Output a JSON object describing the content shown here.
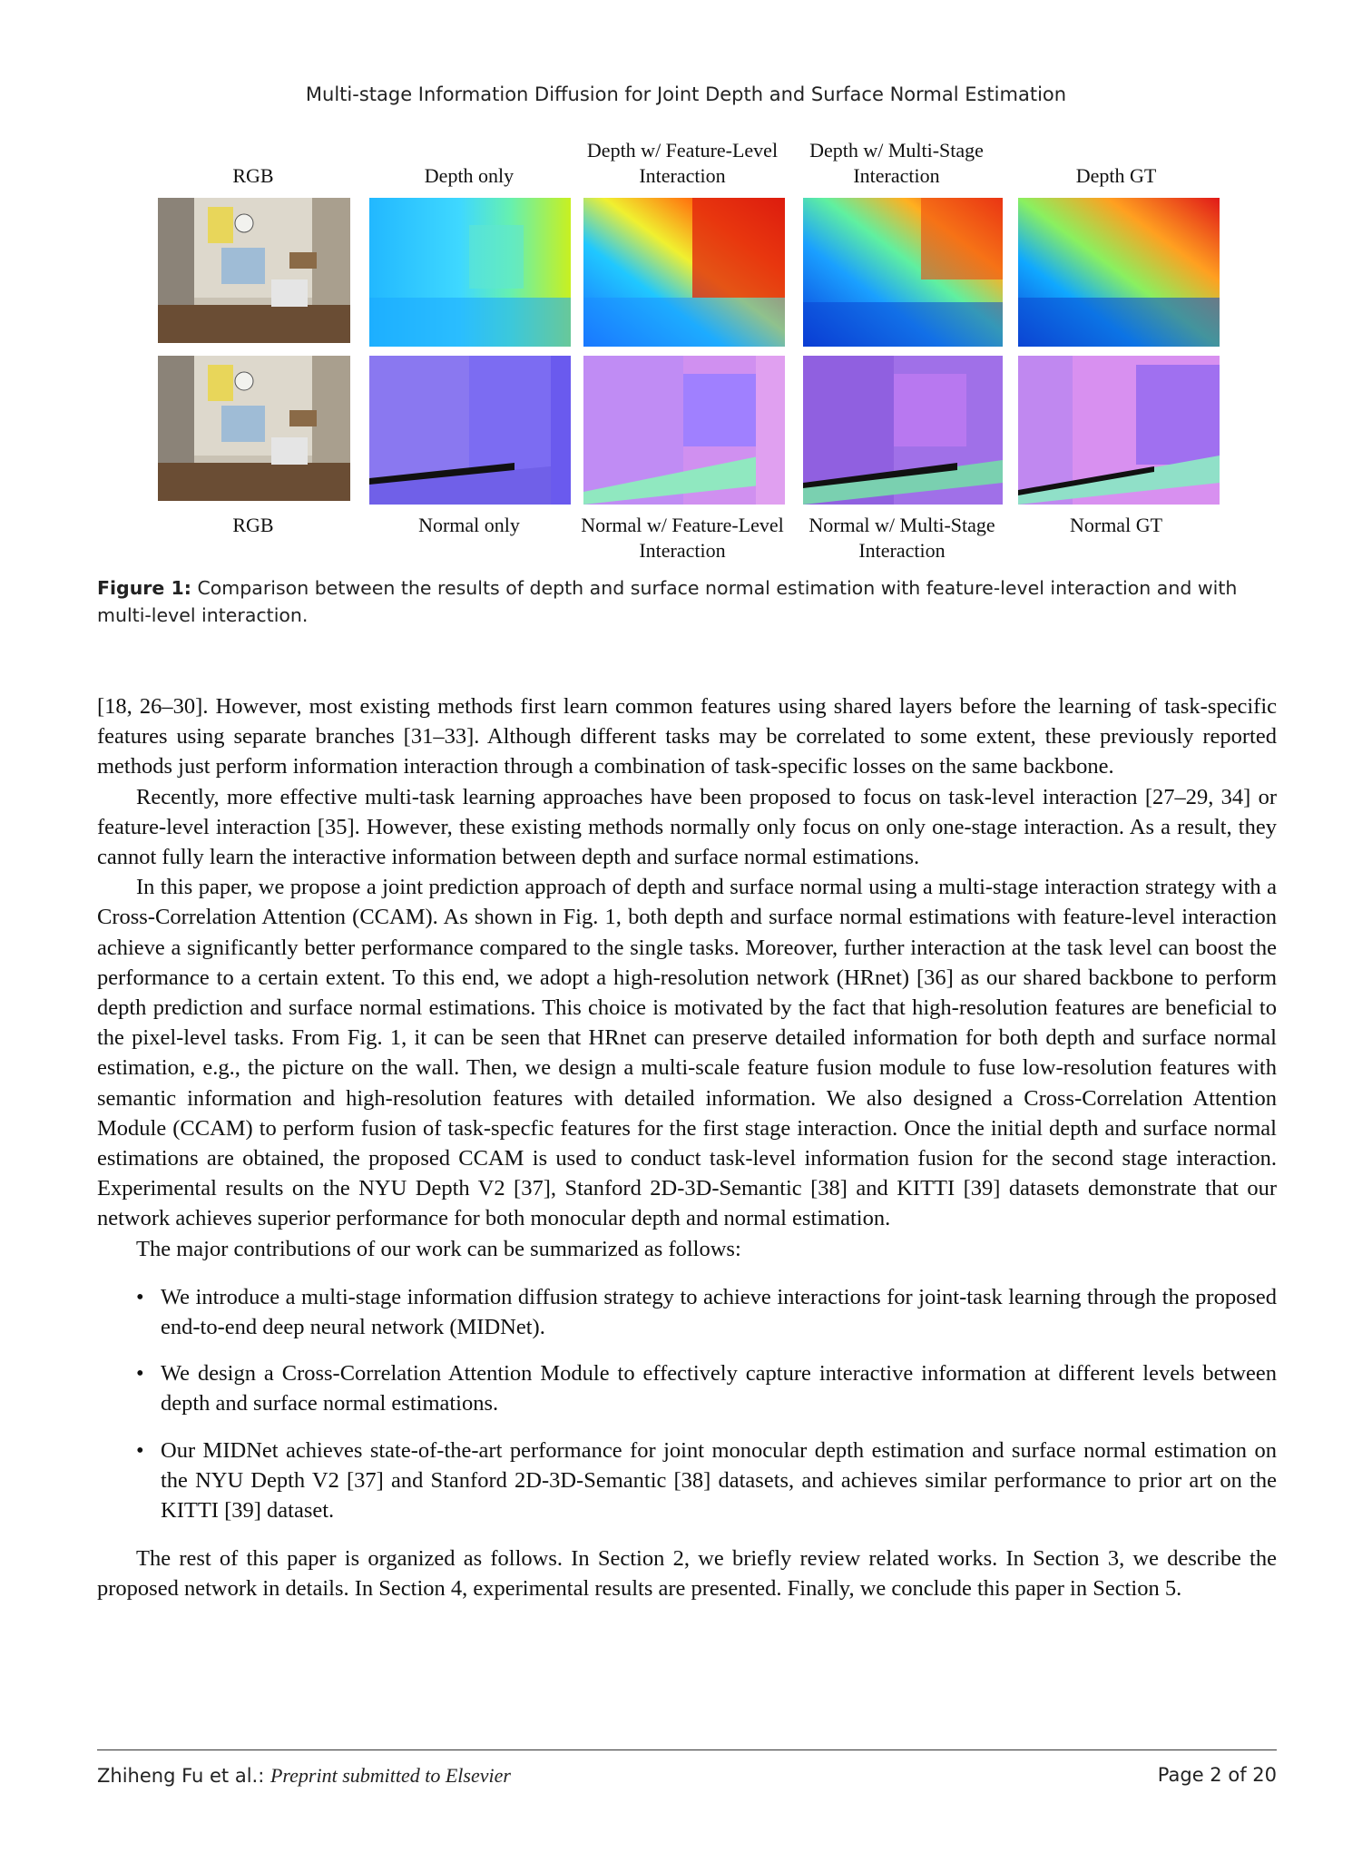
{
  "header": {
    "running_title": "Multi-stage Information Diffusion for Joint Depth and Surface Normal Estimation"
  },
  "figure": {
    "top_labels": [
      "RGB",
      "Depth only",
      "Depth w/ Feature-Level Interaction",
      "Depth w/ Multi-Stage Interaction",
      "Depth GT"
    ],
    "bottom_labels": [
      "RGB",
      "Normal only",
      "Normal  w/ Feature-Level Interaction",
      "Normal w/ Multi-Stage Interaction",
      "Normal GT"
    ],
    "caption_label": "Figure 1:",
    "caption_text": "Comparison between the results of depth and surface normal estimation with feature-level interaction and with multi-level interaction."
  },
  "body": {
    "p1": "[18, 26–30]. However, most existing methods first learn common features using shared layers before the learning of task-specific features using separate branches [31–33]. Although different tasks may be correlated to some extent, these previously reported methods just perform information interaction through a combination of task-specific losses on the same backbone.",
    "p2": "Recently, more effective multi-task learning approaches have been proposed to focus on task-level interaction [27–29, 34] or feature-level interaction [35]. However, these existing methods normally only focus on only one-stage interaction. As a result, they cannot fully learn the interactive information between depth and surface normal estimations.",
    "p3": "In this paper, we propose a joint prediction approach of depth and surface normal using a multi-stage interaction strategy with a Cross-Correlation Attention (CCAM). As shown in Fig. 1, both depth and surface normal estimations with feature-level interaction achieve a significantly better performance compared to the single tasks. Moreover, further interaction at the task level can boost the performance to a certain extent. To this end, we adopt a high-resolution network (HRnet) [36] as our shared backbone to perform depth prediction and surface normal estimations. This choice is motivated by the fact that high-resolution features are beneficial to the pixel-level tasks. From Fig. 1, it can be seen that HRnet can preserve detailed information for both depth and surface normal estimation, e.g., the picture on the wall. Then, we design a multi-scale feature fusion module to fuse low-resolution features with semantic information and high-resolution features with detailed information. We also designed a Cross-Correlation Attention Module (CCAM) to perform fusion of task-specfic features for the first stage interaction. Once the initial depth and surface normal estimations are obtained, the proposed CCAM is used to conduct task-level information fusion for the second stage interaction. Experimental results on the NYU Depth V2 [37], Stanford 2D-3D-Semantic [38] and KITTI [39] datasets demonstrate that our network achieves superior performance for both monocular depth and normal estimation.",
    "p4": "The major contributions of our work can be summarized as follows:",
    "bullets": [
      "We introduce a multi-stage information diffusion strategy to achieve interactions for joint-task learning through the proposed end-to-end deep neural network (MIDNet).",
      "We design a Cross-Correlation Attention Module to effectively capture interactive information at different levels between depth and surface normal estimations.",
      "Our MIDNet achieves state-of-the-art performance for joint monocular depth estimation and surface normal estimation on the NYU Depth V2 [37] and Stanford 2D-3D-Semantic [38] datasets, and achieves similar performance to prior art on the KITTI [39] dataset."
    ],
    "p5": "The rest of this paper is organized as follows. In Section 2, we briefly review related works. In Section 3, we describe the proposed network in details. In Section 4, experimental results are presented. Finally, we conclude this paper in Section 5."
  },
  "footer": {
    "authors": "Zhiheng Fu et al.:",
    "venue": "Preprint submitted to Elsevier",
    "page": "Page 2 of 20"
  },
  "colors": {
    "reference_link": "#2f6f8f"
  }
}
